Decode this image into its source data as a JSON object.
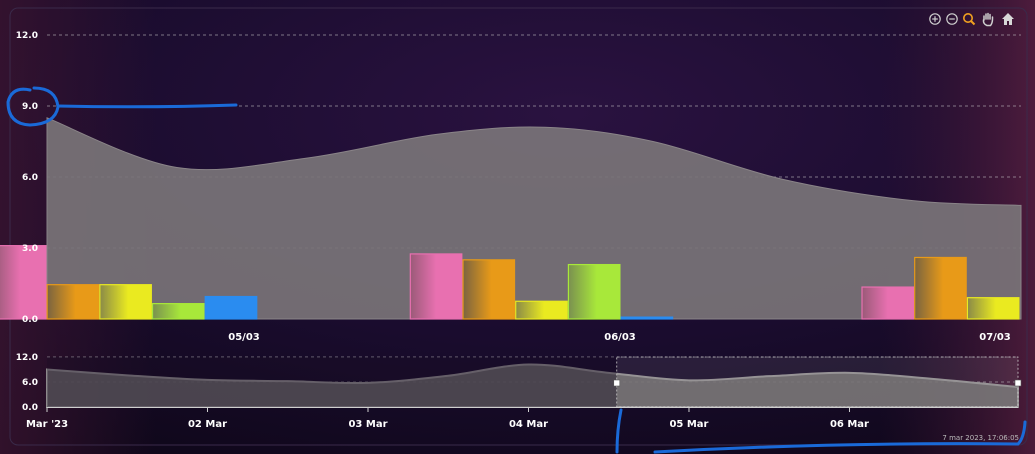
{
  "toolbar": {
    "icons": [
      "zoom-in-icon",
      "zoom-out-icon",
      "zoom-select-icon",
      "pan-hand-icon",
      "home-reset-icon"
    ],
    "active_color": "#f0a020"
  },
  "timestamp": "7 mar 2023, 17:06:05",
  "colors": {
    "background": "#150a26",
    "area": "#7a7478",
    "grid": "#cccccc",
    "pink": "#e870b0",
    "orange": "#e89a18",
    "yellow": "#eaea20",
    "green": "#a8e83a",
    "blue": "#2a8cf0",
    "annotation": "#1a6ad8"
  },
  "chart_data": [
    {
      "type": "bar",
      "role": "main",
      "ylim": [
        0,
        12
      ],
      "yticks": [
        "0.0",
        "3.0",
        "6.0",
        "9.0",
        "12.0"
      ],
      "ytick_values": [
        0,
        3,
        6,
        9,
        12
      ],
      "grid": true,
      "categories": [
        "05/03",
        "06/03",
        "07/03"
      ],
      "groups": [
        {
          "label": "05/03",
          "bars": [
            {
              "color": "pink",
              "value": 3.1
            },
            {
              "color": "orange",
              "value": 1.45
            },
            {
              "color": "yellow",
              "value": 1.45
            },
            {
              "color": "green",
              "value": 0.65
            },
            {
              "color": "blue",
              "value": 0.95
            }
          ]
        },
        {
          "label": "06/03",
          "bars": [
            {
              "color": "pink",
              "value": 2.75
            },
            {
              "color": "orange",
              "value": 2.5
            },
            {
              "color": "yellow",
              "value": 0.75
            },
            {
              "color": "green",
              "value": 2.3
            },
            {
              "color": "blue",
              "value": 0.08
            }
          ]
        },
        {
          "label": "07/03",
          "bars": [
            {
              "color": "pink",
              "value": 1.35
            },
            {
              "color": "orange",
              "value": 2.6
            },
            {
              "color": "yellow",
              "value": 0.9
            }
          ]
        }
      ],
      "area_series": {
        "x": [
          4.8,
          5.1,
          5.4,
          5.7,
          5.95,
          6.2,
          6.5,
          6.8,
          7.05
        ],
        "values": [
          8.5,
          6.4,
          6.8,
          7.8,
          8.1,
          7.5,
          5.9,
          5.0,
          4.8
        ]
      }
    },
    {
      "type": "area",
      "role": "navigator",
      "ylim": [
        0,
        12
      ],
      "yticks": [
        "0.0",
        "6.0",
        "12.0"
      ],
      "ytick_values": [
        0,
        6,
        12
      ],
      "xticks": [
        "Mar '23",
        "02 Mar",
        "03 Mar",
        "04 Mar",
        "05 Mar",
        "06 Mar"
      ],
      "xtick_values": [
        1,
        2,
        3,
        4,
        5,
        6
      ],
      "x": [
        1,
        1.5,
        2,
        2.5,
        3,
        3.5,
        4,
        4.5,
        5,
        5.5,
        6,
        6.5,
        7.05
      ],
      "values": [
        9.0,
        7.6,
        6.5,
        6.2,
        5.8,
        7.5,
        10.2,
        8.2,
        6.4,
        7.4,
        8.2,
        6.8,
        4.8
      ],
      "selected_range": [
        4.55,
        7.05
      ]
    }
  ]
}
